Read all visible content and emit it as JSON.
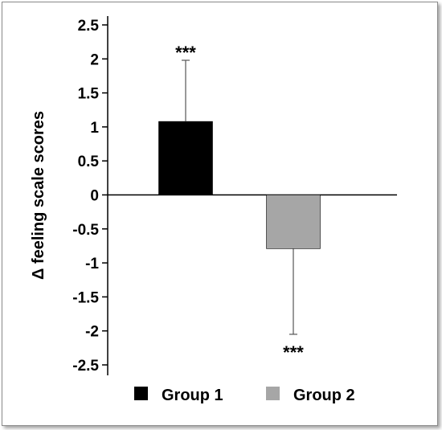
{
  "chart_data": {
    "type": "bar",
    "ylabel": "Δ feeling scale scores",
    "xlabel": "",
    "ylim": [
      -2.5,
      2.5
    ],
    "yticks": [
      "2.5",
      "2",
      "1.5",
      "1",
      "0.5",
      "0",
      "-0.5",
      "-1",
      "-1.5",
      "-2",
      "-2.5"
    ],
    "series": [
      {
        "name": "Group 1",
        "value": 1.08,
        "error": 0.9,
        "color": "#000000",
        "annotation": "***"
      },
      {
        "name": "Group 2",
        "value": -0.79,
        "error": 1.26,
        "color": "#a6a6a6",
        "annotation": "***"
      }
    ],
    "legend_position": "bottom",
    "grid": false
  }
}
